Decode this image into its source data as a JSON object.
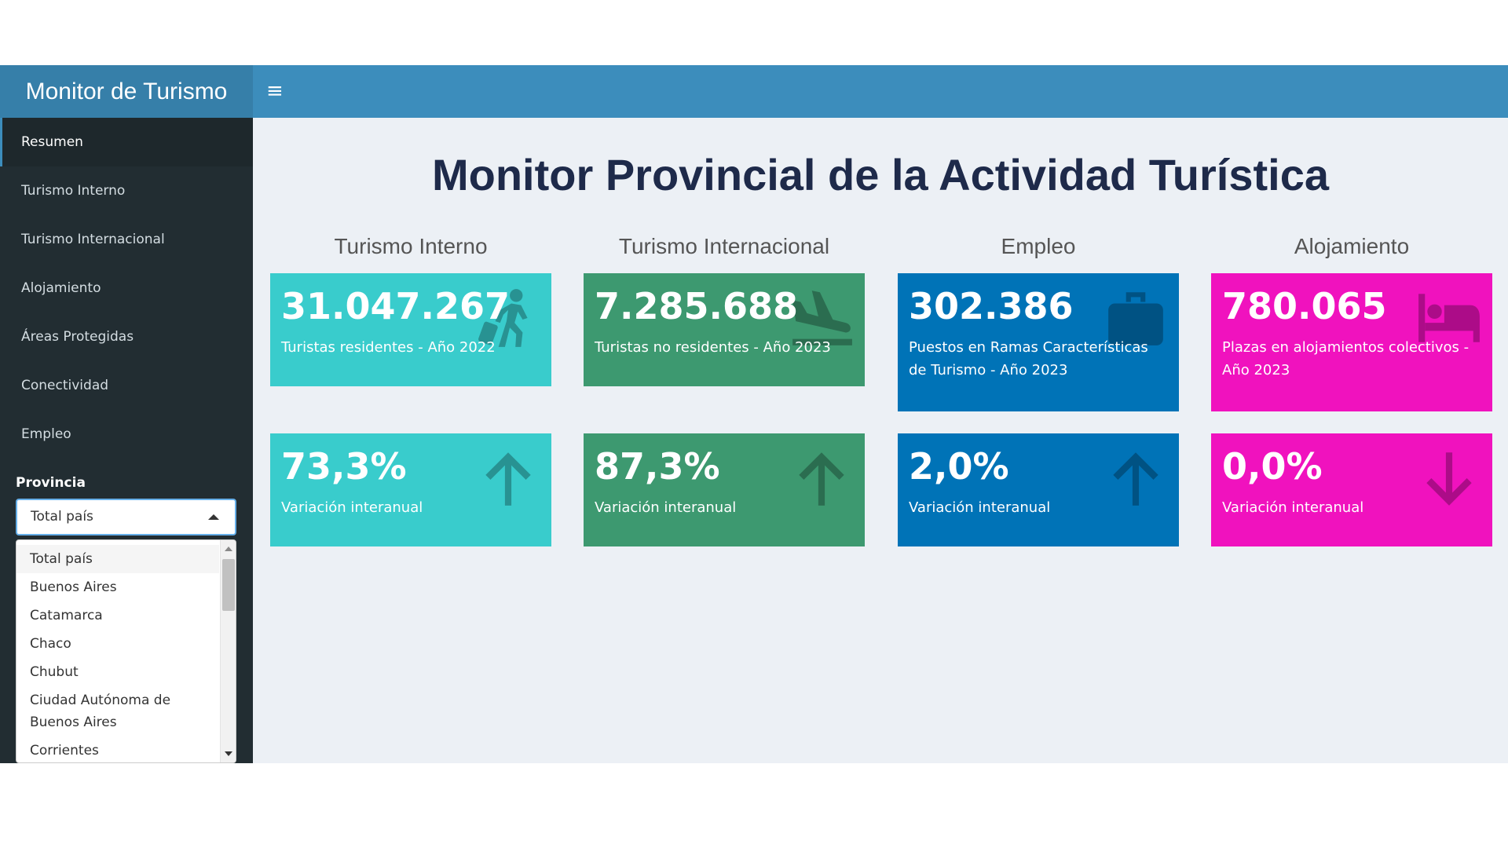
{
  "header": {
    "brand": "Monitor de Turismo",
    "menu_toggle": "≡"
  },
  "sidebar": {
    "items": [
      {
        "label": "Resumen",
        "active": true
      },
      {
        "label": "Turismo Interno"
      },
      {
        "label": "Turismo Internacional"
      },
      {
        "label": "Alojamiento"
      },
      {
        "label": "Áreas Protegidas"
      },
      {
        "label": "Conectividad"
      },
      {
        "label": "Empleo"
      }
    ],
    "province_label": "Provincia",
    "province_selected": "Total país",
    "province_options": [
      "Total país",
      "Buenos Aires",
      "Catamarca",
      "Chaco",
      "Chubut",
      "Ciudad Autónoma de Buenos Aires",
      "Corrientes"
    ]
  },
  "main": {
    "title": "Monitor Provincial de la Actividad Turística",
    "columns": [
      {
        "title": "Turismo Interno",
        "color": "#39cccc",
        "stat": {
          "value": "31.047.267",
          "desc": "Turistas residentes - Año 2022",
          "icon": "walking-luggage-icon"
        },
        "variation": {
          "value": "73,3%",
          "desc": "Variación interanual",
          "icon": "arrow-up-icon"
        }
      },
      {
        "title": "Turismo Internacional",
        "color": "#3d9970",
        "stat": {
          "value": "7.285.688",
          "desc": "Turistas no residentes - Año 2023",
          "icon": "plane-arrival-icon"
        },
        "variation": {
          "value": "87,3%",
          "desc": "Variación interanual",
          "icon": "arrow-up-icon"
        }
      },
      {
        "title": "Empleo",
        "color": "#0073b7",
        "stat": {
          "value": "302.386",
          "desc": "Puestos en Ramas Características de Turismo - Año 2023",
          "icon": "suitcase-icon"
        },
        "variation": {
          "value": "2,0%",
          "desc": "Variación interanual",
          "icon": "arrow-up-icon"
        }
      },
      {
        "title": "Alojamiento",
        "color": "#f012be",
        "stat": {
          "value": "780.065",
          "desc": "Plazas en alojamientos colectivos - Año 2023",
          "icon": "bed-icon"
        },
        "variation": {
          "value": "0,0%",
          "desc": "Variación interanual",
          "icon": "arrow-down-icon"
        }
      }
    ]
  }
}
